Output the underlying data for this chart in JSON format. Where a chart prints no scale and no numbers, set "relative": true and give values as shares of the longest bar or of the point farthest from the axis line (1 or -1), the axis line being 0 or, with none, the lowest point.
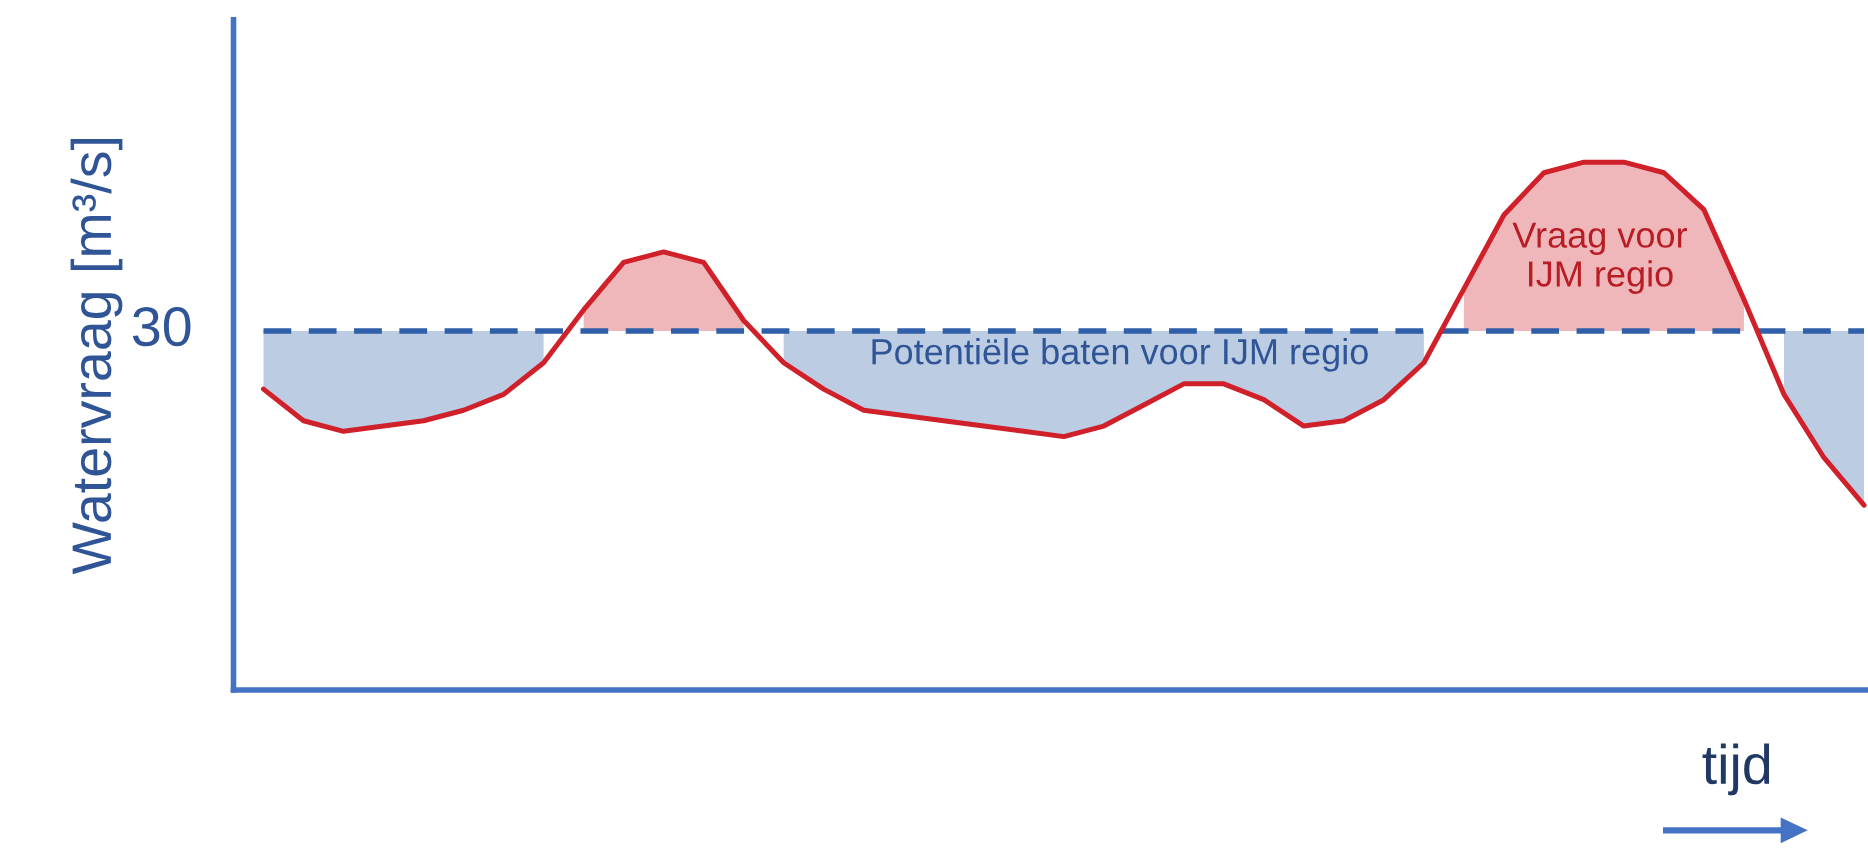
{
  "chart_data": {
    "type": "line",
    "relative": true,
    "ylabel": "Watervraag [m³/s]",
    "xlabel": "tijd",
    "marker": "none",
    "line_style": "solid",
    "categories": [
      null,
      null,
      null,
      null,
      null,
      null,
      null,
      null,
      null,
      null,
      null,
      null,
      null,
      null,
      null,
      null,
      null,
      null,
      null,
      null,
      null,
      null,
      null,
      null,
      null,
      null,
      null,
      null,
      null,
      null,
      null,
      null,
      null,
      null,
      null,
      null,
      null,
      null,
      null,
      null,
      null
    ],
    "series": [
      {
        "color": "#2f5fa8",
        "line_style": "dashed",
        "values": [
          0.68,
          0.68,
          0.68,
          0.68,
          0.68,
          0.68,
          0.68,
          0.68,
          0.68,
          0.68,
          0.68,
          0.68,
          0.68,
          0.68,
          0.68,
          0.68,
          0.68,
          0.68,
          0.68,
          0.68,
          0.68,
          0.68,
          0.68,
          0.68,
          0.68,
          0.68,
          0.68,
          0.68,
          0.68,
          0.68,
          0.68,
          0.68,
          0.68,
          0.68,
          0.68,
          0.68,
          0.68,
          0.68,
          0.68,
          0.68,
          0.68
        ],
        "lower": [
          0.57,
          0.51,
          0.49,
          0.5,
          0.51,
          0.53,
          0.56,
          0.62,
          null,
          null,
          null,
          null,
          null,
          0.62,
          0.57,
          0.53,
          0.52,
          0.51,
          0.5,
          0.49,
          0.48,
          0.5,
          0.54,
          0.58,
          0.58,
          0.55,
          0.5,
          0.51,
          0.55,
          0.62,
          null,
          null,
          null,
          null,
          null,
          null,
          null,
          null,
          0.56,
          0.44,
          0.35
        ],
        "upper": [
          0.68,
          0.68,
          0.68,
          0.68,
          0.68,
          0.68,
          0.68,
          0.68,
          null,
          null,
          null,
          null,
          null,
          0.68,
          0.68,
          0.68,
          0.68,
          0.68,
          0.68,
          0.68,
          0.68,
          0.68,
          0.68,
          0.68,
          0.68,
          0.68,
          0.68,
          0.68,
          0.68,
          0.68,
          null,
          null,
          null,
          null,
          null,
          null,
          null,
          null,
          0.68,
          0.68,
          0.68
        ]
      },
      {
        "color": "#d0202a",
        "values": [
          0.57,
          0.51,
          0.49,
          0.5,
          0.51,
          0.53,
          0.56,
          0.62,
          0.72,
          0.81,
          0.83,
          0.81,
          0.7,
          0.62,
          0.57,
          0.53,
          0.52,
          0.51,
          0.5,
          0.49,
          0.48,
          0.5,
          0.54,
          0.58,
          0.58,
          0.55,
          0.5,
          0.51,
          0.55,
          0.62,
          0.76,
          0.9,
          0.98,
          1.0,
          1.0,
          0.98,
          0.91,
          0.74,
          0.56,
          0.44,
          0.35
        ],
        "lower": [
          null,
          null,
          null,
          null,
          null,
          null,
          null,
          null,
          0.68,
          0.68,
          0.68,
          0.68,
          0.68,
          null,
          null,
          null,
          null,
          null,
          null,
          null,
          null,
          null,
          null,
          null,
          null,
          null,
          null,
          null,
          null,
          null,
          0.68,
          0.68,
          0.68,
          0.68,
          0.68,
          0.68,
          0.68,
          0.68,
          null,
          null,
          null
        ],
        "upper": [
          null,
          null,
          null,
          null,
          null,
          null,
          null,
          null,
          0.72,
          0.81,
          0.83,
          0.81,
          0.7,
          null,
          null,
          null,
          null,
          null,
          null,
          null,
          null,
          null,
          null,
          null,
          null,
          null,
          null,
          null,
          null,
          null,
          0.76,
          0.9,
          0.98,
          1.0,
          1.0,
          0.98,
          0.91,
          0.74,
          null,
          null,
          null
        ]
      }
    ],
    "annotations": [
      "30",
      "Potentiële baten voor IJM regio",
      "Vraag voor\nIJM regio"
    ]
  }
}
